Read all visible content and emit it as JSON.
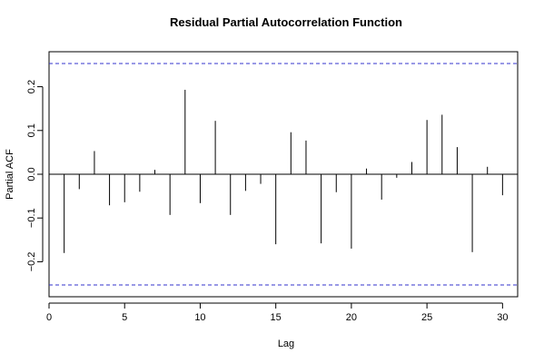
{
  "chart_data": {
    "type": "bar",
    "title": "Residual Partial Autocorrelation Function",
    "xlabel": "Lag",
    "ylabel": "Partial ACF",
    "xlim": [
      0,
      31
    ],
    "ylim": [
      -0.28,
      0.28
    ],
    "x_ticks": [
      0,
      5,
      10,
      15,
      20,
      25,
      30
    ],
    "y_ticks": [
      -0.2,
      -0.1,
      0.0,
      0.1,
      0.2
    ],
    "y_tick_labels": [
      "−0.2",
      "−0.1",
      "0.0",
      "0.1",
      "0.2"
    ],
    "confidence_bound": 0.253,
    "bound_color": "#3333cc",
    "series": [
      {
        "x": [
          1,
          2,
          3,
          4,
          5,
          6,
          7,
          8,
          9,
          10,
          11,
          12,
          13,
          14,
          15,
          16,
          17,
          18,
          19,
          20,
          21,
          22,
          23,
          24,
          25,
          26,
          27,
          28,
          29,
          30
        ],
        "values": [
          -0.18,
          -0.034,
          0.053,
          -0.071,
          -0.064,
          -0.04,
          0.01,
          -0.093,
          0.193,
          -0.066,
          0.122,
          -0.093,
          -0.038,
          -0.022,
          -0.16,
          0.096,
          0.077,
          -0.158,
          -0.041,
          -0.17,
          0.013,
          -0.058,
          -0.008,
          0.028,
          0.124,
          0.136,
          0.062,
          -0.178,
          0.017,
          -0.048
        ]
      }
    ]
  }
}
